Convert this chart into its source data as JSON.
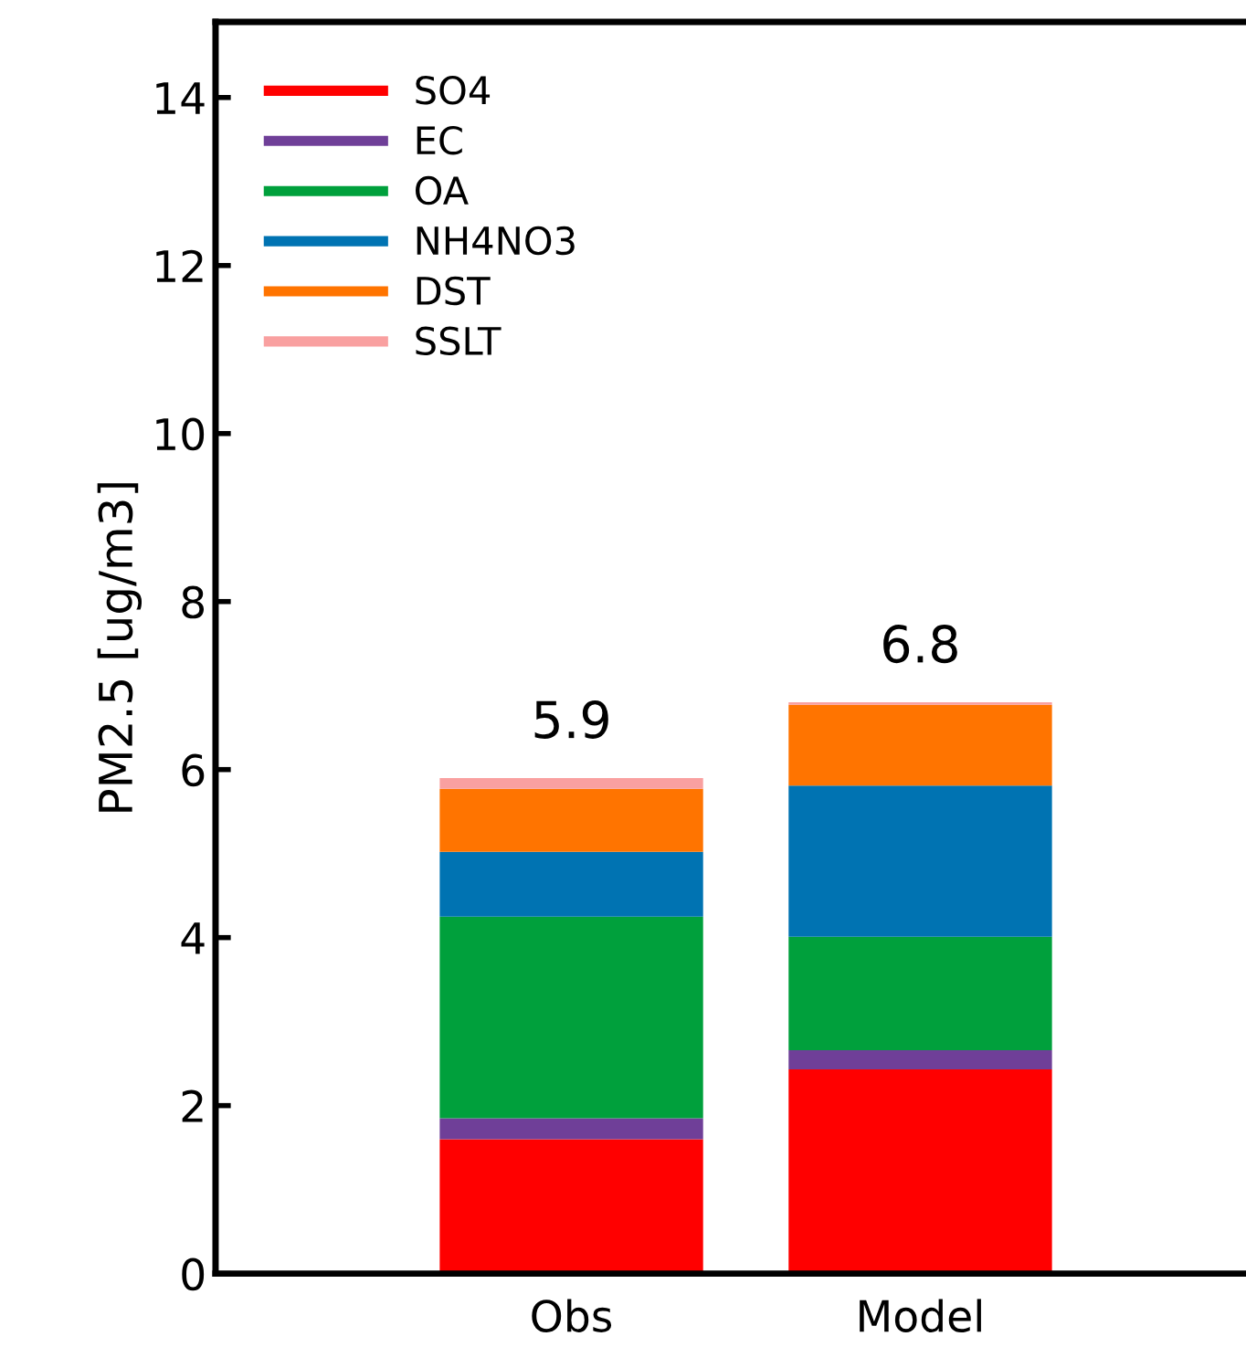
{
  "chart_data": {
    "type": "bar",
    "stacked": true,
    "ylabel": "PM2.5 [ug/m3]",
    "categories": [
      "Obs",
      "Model"
    ],
    "series": [
      {
        "name": "SO4",
        "color": "#ff0000",
        "values": [
          1.6,
          2.43
        ]
      },
      {
        "name": "EC",
        "color": "#6f3f98",
        "values": [
          0.25,
          0.23
        ]
      },
      {
        "name": "OA",
        "color": "#00a03c",
        "values": [
          2.4,
          1.35
        ]
      },
      {
        "name": "NH4NO3",
        "color": "#0073b2",
        "values": [
          0.77,
          1.8
        ]
      },
      {
        "name": "DST",
        "color": "#ff7400",
        "values": [
          0.75,
          0.96
        ]
      },
      {
        "name": "SSLT",
        "color": "#f9a0a0",
        "values": [
          0.13,
          0.03
        ]
      }
    ],
    "totals": [
      "5.9",
      "6.8"
    ],
    "ylim": [
      0,
      14.9
    ],
    "yticks": [
      0,
      2,
      4,
      6,
      8,
      10,
      12,
      14
    ],
    "grid": false,
    "legend": "top left"
  }
}
